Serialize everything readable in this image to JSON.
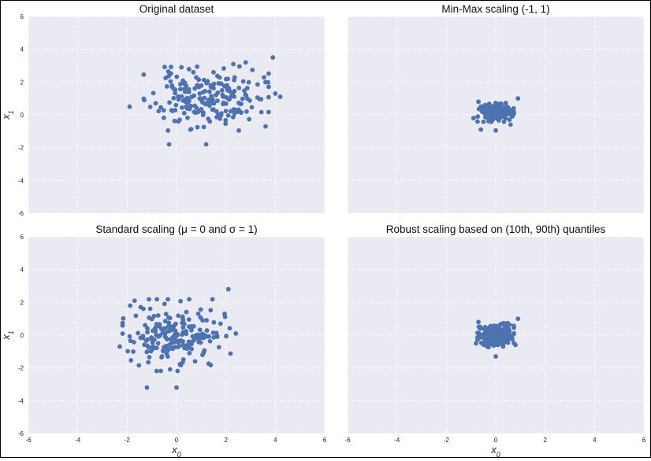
{
  "figure": {
    "background": "#ffffff",
    "panel_background": "#eaeaf2",
    "grid_color": "#ffffff",
    "point_color": "#4c72b0"
  },
  "chart_data": [
    {
      "type": "scatter",
      "title": "Original dataset",
      "xlabel": "",
      "ylabel": "x1",
      "xlim": [
        -6,
        6
      ],
      "ylim": [
        -6,
        6
      ],
      "xticks": [],
      "yticks": [
        -6,
        -4,
        -2,
        0,
        2,
        4,
        6
      ],
      "grid": true,
      "cluster": {
        "center_x": 1.2,
        "center_y": 1.0,
        "spread_x": 1.1,
        "spread_y": 0.85,
        "count": 200,
        "seed": 11
      },
      "points": [
        [
          3.9,
          3.5
        ],
        [
          2.8,
          3.2
        ],
        [
          4.2,
          1.1
        ],
        [
          4.0,
          1.3
        ],
        [
          -0.3,
          -1.8
        ],
        [
          1.2,
          -1.8
        ],
        [
          -1.9,
          0.5
        ],
        [
          0.2,
          2.9
        ],
        [
          2.3,
          3.1
        ],
        [
          1.5,
          2.6
        ]
      ]
    },
    {
      "type": "scatter",
      "title": "Min-Max scaling (-1, 1)",
      "xlabel": "",
      "ylabel": "",
      "xlim": [
        -6,
        6
      ],
      "ylim": [
        -6,
        6
      ],
      "xticks": [],
      "yticks": [],
      "grid": true,
      "cluster": {
        "center_x": 0.0,
        "center_y": 0.15,
        "spread_x": 0.32,
        "spread_y": 0.25,
        "count": 220,
        "seed": 23
      },
      "points": [
        [
          0.9,
          1.0
        ],
        [
          -0.7,
          0.8
        ],
        [
          -0.6,
          -0.9
        ],
        [
          0.0,
          -0.95
        ],
        [
          0.6,
          -0.6
        ],
        [
          -0.9,
          -0.2
        ]
      ]
    },
    {
      "type": "scatter",
      "title": "Standard scaling (μ = 0 and σ = 1)",
      "xlabel": "x0",
      "ylabel": "x1",
      "xlim": [
        -6,
        6
      ],
      "ylim": [
        -6,
        6
      ],
      "xticks": [
        -6,
        -4,
        -2,
        0,
        2,
        4,
        6
      ],
      "yticks": [
        -6,
        -4,
        -2,
        0,
        2,
        4,
        6
      ],
      "grid": true,
      "cluster": {
        "center_x": 0.0,
        "center_y": 0.0,
        "spread_x": 0.95,
        "spread_y": 0.95,
        "count": 200,
        "seed": 37
      },
      "points": [
        [
          2.1,
          2.8
        ],
        [
          -1.2,
          -3.2
        ],
        [
          0.0,
          -3.2
        ],
        [
          -2.3,
          -0.7
        ],
        [
          2.4,
          0.1
        ],
        [
          -1.7,
          2.1
        ]
      ]
    },
    {
      "type": "scatter",
      "title": "Robust scaling based on (10th, 90th) quantiles",
      "xlabel": "x0",
      "ylabel": "",
      "xlim": [
        -6,
        6
      ],
      "ylim": [
        -6,
        6
      ],
      "xticks": [
        -6,
        -4,
        -2,
        0,
        2,
        4,
        6
      ],
      "yticks": [],
      "grid": true,
      "cluster": {
        "center_x": 0.0,
        "center_y": 0.0,
        "spread_x": 0.32,
        "spread_y": 0.32,
        "count": 220,
        "seed": 53
      },
      "points": [
        [
          0.9,
          1.0
        ],
        [
          -0.7,
          0.8
        ],
        [
          0.0,
          -1.3
        ],
        [
          -0.8,
          -0.5
        ],
        [
          0.8,
          -0.6
        ]
      ]
    }
  ]
}
